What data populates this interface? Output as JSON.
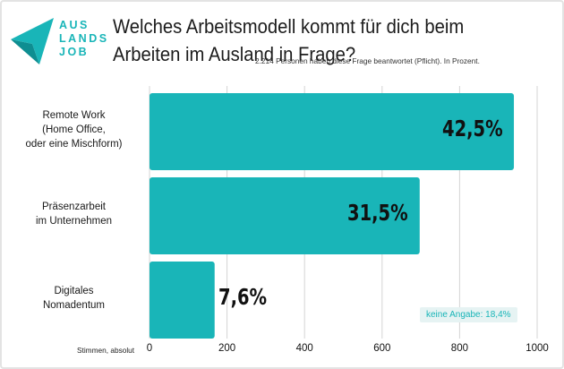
{
  "title": "Welches Arbeitsmodell kommt für dich beim Arbeiten im Ausland in Frage?",
  "subtitle": "2.214 Personen haben diese Frage beantwortet (Pflicht). In Prozent.",
  "logo": {
    "lines": [
      "AUS",
      "LANDS",
      "JOB"
    ],
    "color": "#19b5b8"
  },
  "note": "keine Angabe: 18,4%",
  "colors": {
    "bar": "#19b5b8",
    "grid": "#d4d4d4"
  },
  "chart_data": {
    "type": "bar",
    "orientation": "horizontal",
    "categories": [
      [
        "Remote Work",
        "(Home Office,",
        "oder eine Mischform)"
      ],
      [
        "Präsenzarbeit",
        "im Unternehmen"
      ],
      [
        "Digitales",
        "Nomadentum"
      ]
    ],
    "values": [
      940,
      697,
      168
    ],
    "value_labels": [
      "42,5%",
      "31,5%",
      "7,6%"
    ],
    "xlabel": "Stimmen, absolut",
    "xlim": [
      0,
      1000
    ],
    "xticks": [
      0,
      200,
      400,
      600,
      800,
      1000
    ],
    "grid": true
  }
}
